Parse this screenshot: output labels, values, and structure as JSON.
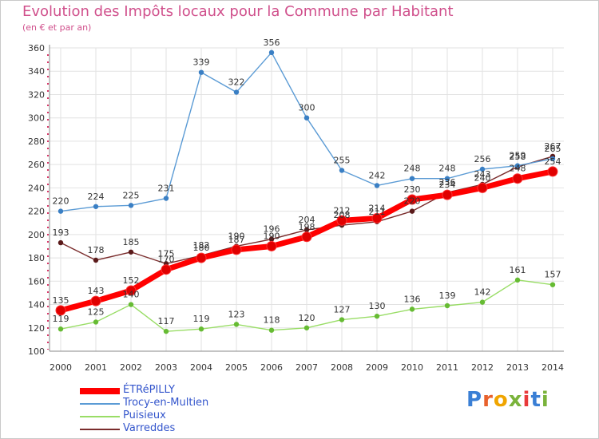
{
  "title": "Evolution des Impôts locaux pour la Commune par Habitant",
  "subtitle": "(en € et par an)",
  "logo": {
    "letters": [
      "P",
      "r",
      "o",
      "x",
      "i",
      "t",
      "i"
    ],
    "colors": [
      "#3a7fd5",
      "#e8612c",
      "#f0a500",
      "#7ab33b",
      "#e83a3a",
      "#3a7fd5",
      "#7ab33b"
    ]
  },
  "chart_data": {
    "type": "line",
    "title": "Evolution des Impôts locaux pour la Commune par Habitant",
    "ylabel": "(en € et par an)",
    "xlabel": "",
    "ylim": [
      100,
      360
    ],
    "yticks": [
      100,
      120,
      140,
      160,
      180,
      200,
      220,
      240,
      260,
      280,
      300,
      320,
      340,
      360
    ],
    "categories": [
      "2000",
      "2001",
      "2002",
      "2003",
      "2004",
      "2005",
      "2006",
      "2007",
      "2008",
      "2009",
      "2010",
      "2011",
      "2012",
      "2013",
      "2014"
    ],
    "series": [
      {
        "name": "ÉTRéPILLY",
        "color": "#ff0000",
        "marker": "#e00000",
        "values": [
          135,
          143,
          152,
          170,
          180,
          187,
          190,
          198,
          212,
          214,
          230,
          234,
          240,
          248,
          254
        ],
        "labels": [
          "135",
          "143",
          "152",
          "170",
          "180",
          "187",
          "190",
          "198",
          "212",
          "214",
          "230",
          "234",
          "240",
          "248",
          "254"
        ]
      },
      {
        "name": "Trocy-en-Multien",
        "color": "#5b9bd5",
        "marker": "#3a7fc4",
        "values": [
          220,
          224,
          225,
          231,
          339,
          322,
          356,
          300,
          255,
          242,
          248,
          248,
          256,
          259,
          265
        ],
        "labels": [
          "220",
          "224",
          "225",
          "231",
          "339",
          "322",
          "356",
          "300",
          "255",
          "242",
          "248",
          "248",
          "256",
          "259",
          "265"
        ]
      },
      {
        "name": "Puisieux",
        "color": "#99dd66",
        "marker": "#66bb33",
        "values": [
          119,
          125,
          140,
          117,
          119,
          123,
          118,
          120,
          127,
          130,
          136,
          139,
          142,
          161,
          157
        ],
        "labels": [
          "119",
          "125",
          "140",
          "117",
          "119",
          "123",
          "118",
          "120",
          "127",
          "130",
          "136",
          "139",
          "142",
          "161",
          "157"
        ]
      },
      {
        "name": "Varreddes",
        "color": "#7a2c2c",
        "marker": "#5a1a1a",
        "values": [
          193,
          178,
          185,
          175,
          182,
          190,
          196,
          204,
          208,
          211,
          220,
          236,
          243,
          258,
          267
        ],
        "labels": [
          "193",
          "178",
          "185",
          "175",
          "182",
          "190",
          "196",
          "204",
          "208",
          "211",
          "220",
          "236",
          "243",
          "258",
          "267"
        ]
      }
    ],
    "grid": true,
    "legend": "bottom-left"
  }
}
